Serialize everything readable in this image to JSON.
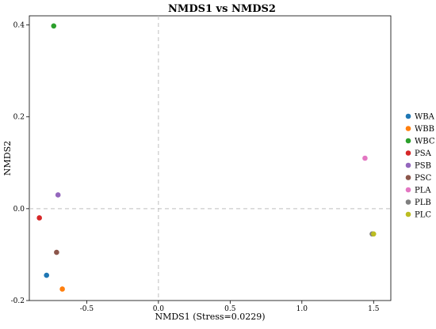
{
  "chart_data": {
    "type": "scatter",
    "title": "NMDS1 vs NMDS2",
    "xlabel": "NMDS1 (Stress=0.0229)",
    "ylabel": "NMDS2",
    "xlim": [
      -0.9,
      1.62
    ],
    "ylim": [
      -0.2,
      0.42
    ],
    "xticks": [
      -0.5,
      0.0,
      0.5,
      1.0,
      1.5
    ],
    "xtick_labels": [
      "-0.5",
      "0.0",
      "0.5",
      "1.0",
      "1.5"
    ],
    "yticks": [
      -0.2,
      0.0,
      0.2,
      0.4
    ],
    "ytick_labels": [
      "-0.2",
      "0.0",
      "0.2",
      "0.4"
    ],
    "reference_lines": {
      "x": 0.0,
      "y": 0.0,
      "style": "dashed"
    },
    "grid": false,
    "legend_position": "right",
    "series": [
      {
        "name": "WBA",
        "color": "#1f77b4",
        "x": -0.78,
        "y": -0.145
      },
      {
        "name": "WBB",
        "color": "#ff7f0e",
        "x": -0.67,
        "y": -0.175
      },
      {
        "name": "WBC",
        "color": "#2ca02c",
        "x": -0.73,
        "y": 0.398
      },
      {
        "name": "PSA",
        "color": "#d62728",
        "x": -0.83,
        "y": -0.02
      },
      {
        "name": "PSB",
        "color": "#9467bd",
        "x": -0.7,
        "y": 0.03
      },
      {
        "name": "PSC",
        "color": "#8c564b",
        "x": -0.71,
        "y": -0.095
      },
      {
        "name": "PLA",
        "color": "#e377c2",
        "x": 1.44,
        "y": 0.11
      },
      {
        "name": "PLB",
        "color": "#7f7f7f",
        "x": 1.49,
        "y": -0.055
      },
      {
        "name": "PLC",
        "color": "#bcbd22",
        "x": 1.5,
        "y": -0.055
      }
    ]
  }
}
